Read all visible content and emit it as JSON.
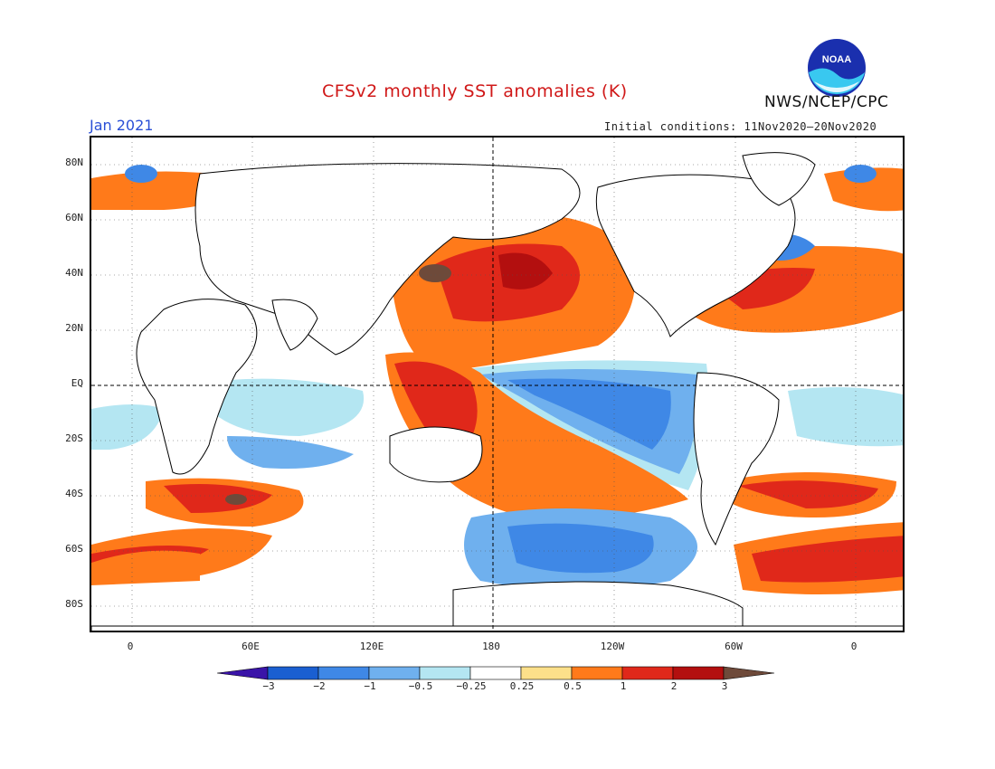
{
  "title": "CFSv2 monthly SST anomalies (K)",
  "organization": "NWS/NCEP/CPC",
  "logo_text": "NOAA",
  "valid_month": "Jan 2021",
  "initial_conditions": "Initial conditions: 11Nov2020–20Nov2020",
  "lat_labels": [
    "80N",
    "60N",
    "40N",
    "20N",
    "EQ",
    "20S",
    "40S",
    "60S",
    "80S"
  ],
  "lon_labels": [
    "0",
    "60E",
    "120E",
    "180",
    "120W",
    "60W",
    "0"
  ],
  "colorbar": {
    "labels": [
      "−3",
      "−2",
      "−1",
      "−0.5",
      "−0.25",
      "0.25",
      "0.5",
      "1",
      "2",
      "3"
    ],
    "colors": [
      "#3a14a8",
      "#1a5fd1",
      "#3f88e6",
      "#6fb0ee",
      "#b4e6f2",
      "#ffffff",
      "#fce08a",
      "#ff7a1a",
      "#e0281a",
      "#b30f0f",
      "#6e4a3a"
    ]
  }
}
